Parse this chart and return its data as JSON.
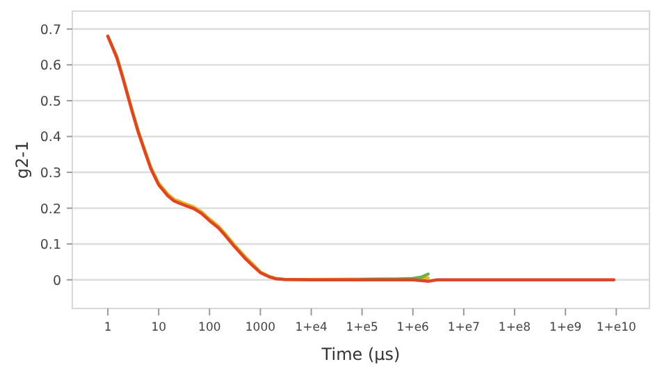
{
  "chart_data": {
    "type": "line",
    "xlabel": "Time (µs)",
    "ylabel": "g2-1",
    "log": "x",
    "grid": "y",
    "line_style": "solid",
    "marker": "none",
    "xlim": [
      0.2,
      45000000000
    ],
    "ylim": [
      -0.08,
      0.75
    ],
    "xticks": [
      1,
      10,
      100,
      1000,
      {
        "value": 10000,
        "label": "1+e4"
      },
      {
        "value": 100000,
        "label": "1+e5"
      },
      {
        "value": 1000000,
        "label": "1+e6"
      },
      {
        "value": 10000000,
        "label": "1+e7"
      },
      {
        "value": 100000000,
        "label": "1+e8"
      },
      {
        "value": 1000000000,
        "label": "1+e9"
      },
      {
        "value": 10000000000,
        "label": "1+e10"
      }
    ],
    "yticks": [
      0,
      0.1,
      0.2,
      0.3,
      0.4,
      0.5,
      0.6,
      0.7
    ],
    "series": [
      {
        "color": "#f0b323",
        "x": [
          1,
          1.5,
          2,
          3,
          4,
          5,
          7,
          10,
          15,
          20,
          30,
          50,
          70,
          100,
          150,
          200,
          300,
          500,
          700,
          1000,
          1500,
          2000,
          3000,
          10000,
          100000,
          1000000,
          2000000
        ],
        "values": [
          0.68,
          0.625,
          0.565,
          0.475,
          0.415,
          0.375,
          0.315,
          0.27,
          0.24,
          0.225,
          0.215,
          0.203,
          0.19,
          0.17,
          0.15,
          0.13,
          0.1,
          0.065,
          0.045,
          0.022,
          0.01,
          0.004,
          0.001,
          0.001,
          0.002,
          0.003,
          0.005
        ]
      },
      {
        "color": "#6ab04c",
        "x": [
          100000,
          500000,
          1000000,
          1500000,
          2000000
        ],
        "values": [
          0.001,
          0.002,
          0.004,
          0.008,
          0.016
        ]
      },
      {
        "color": "#d9472b",
        "x": [
          1,
          1.5,
          2,
          3,
          4,
          5,
          7,
          10,
          15,
          20,
          30,
          50,
          70,
          100,
          150,
          200,
          300,
          500,
          700,
          1000,
          1500,
          2000,
          3000,
          10000,
          100000,
          1000000,
          2000000,
          3000000,
          10000000,
          100000000,
          1000000000,
          9000000000
        ],
        "values": [
          0.68,
          0.62,
          0.56,
          0.47,
          0.41,
          0.37,
          0.31,
          0.265,
          0.235,
          0.22,
          0.21,
          0.198,
          0.185,
          0.165,
          0.145,
          0.125,
          0.095,
          0.06,
          0.04,
          0.02,
          0.008,
          0.003,
          0.001,
          0,
          0,
          0,
          -0.004,
          0,
          0,
          0,
          0,
          0
        ]
      }
    ]
  }
}
